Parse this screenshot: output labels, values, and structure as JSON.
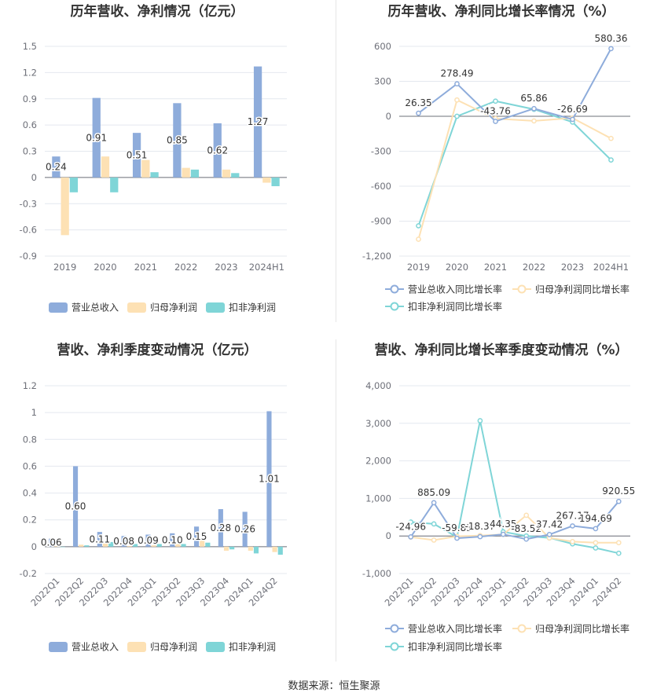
{
  "source_text": "数据来源：恒生聚源",
  "colors": {
    "revenue": "#8eacdb",
    "net_profit": "#fde1b4",
    "deducted_profit": "#7fd5d7",
    "grid": "#e4e8ef",
    "axis": "#6e7079"
  },
  "chart_data": [
    {
      "type": "bar",
      "title": "历年营收、净利情况（亿元）",
      "categories": [
        "2019",
        "2020",
        "2021",
        "2022",
        "2023",
        "2024H1"
      ],
      "series": [
        {
          "name": "营业总收入",
          "values": [
            0.24,
            0.91,
            0.51,
            0.85,
            0.62,
            1.27
          ],
          "labels": [
            "0.24",
            "0.91",
            "0.51",
            "0.85",
            "0.62",
            "1.27"
          ]
        },
        {
          "name": "归母净利润",
          "values": [
            -0.66,
            0.24,
            0.2,
            0.11,
            0.09,
            -0.06
          ]
        },
        {
          "name": "扣非净利润",
          "values": [
            -0.17,
            -0.17,
            0.06,
            0.09,
            0.05,
            -0.1
          ]
        }
      ],
      "yticks": [
        "1.5",
        "1.2",
        "0.9",
        "0.6",
        "0.3",
        "0",
        "-0.3",
        "-0.6",
        "-0.9"
      ],
      "ylim": [
        -0.9,
        1.5
      ],
      "legend_position": "bottom"
    },
    {
      "type": "line",
      "title": "历年营收、净利同比增长率情况（%）",
      "categories": [
        "2019",
        "2020",
        "2021",
        "2022",
        "2023",
        "2024H1"
      ],
      "series": [
        {
          "name": "营业总收入同比增长率",
          "values": [
            26.35,
            278.49,
            -43.76,
            65.86,
            -26.69,
            580.36
          ],
          "labels": [
            "26.35",
            "278.49",
            "-43.76",
            "65.86",
            "-26.69",
            "580.36"
          ]
        },
        {
          "name": "归母净利润同比增长率",
          "values": [
            -1055,
            140,
            -20,
            -40,
            -15,
            -190
          ]
        },
        {
          "name": "扣非净利润同比增长率",
          "values": [
            -940,
            0,
            130,
            60,
            -50,
            -375
          ]
        }
      ],
      "yticks": [
        "600",
        "300",
        "0",
        "-300",
        "-600",
        "-900",
        "-1,200"
      ],
      "ylim": [
        -1200,
        600
      ],
      "legend_position": "bottom"
    },
    {
      "type": "bar",
      "title": "营收、净利季度变动情况（亿元）",
      "categories": [
        "2022Q1",
        "2022Q2",
        "2022Q3",
        "2022Q4",
        "2023Q1",
        "2023Q2",
        "2023Q3",
        "2023Q4",
        "2024Q1",
        "2024Q2"
      ],
      "series": [
        {
          "name": "营业总收入",
          "values": [
            0.06,
            0.6,
            0.11,
            0.08,
            0.09,
            0.1,
            0.15,
            0.28,
            0.26,
            1.01
          ],
          "labels": [
            "0.06",
            "0.60",
            "0.11",
            "0.08",
            "0.09",
            "0.10",
            "0.15",
            "0.28",
            "0.26",
            "1.01"
          ]
        },
        {
          "name": "归母净利润",
          "values": [
            0.005,
            0.015,
            0.03,
            0.005,
            0.01,
            0.02,
            0.05,
            -0.03,
            -0.03,
            -0.04
          ]
        },
        {
          "name": "扣非净利润",
          "values": [
            0.0,
            0.01,
            0.035,
            0.02,
            0.02,
            0.02,
            0.03,
            -0.02,
            -0.05,
            -0.06
          ]
        }
      ],
      "yticks": [
        "1.2",
        "1",
        "0.8",
        "0.6",
        "0.4",
        "0.2",
        "0",
        "-0.2"
      ],
      "ylim": [
        -0.2,
        1.2
      ],
      "legend_position": "bottom"
    },
    {
      "type": "line",
      "title": "营收、净利同比增长率季度变动情况（%）",
      "categories": [
        "2022Q1",
        "2022Q2",
        "2022Q3",
        "2022Q4",
        "2023Q1",
        "2023Q2",
        "2023Q3",
        "2023Q4",
        "2024Q1",
        "2024Q2"
      ],
      "series": [
        {
          "name": "营业总收入同比增长率",
          "values": [
            -24.96,
            885.09,
            -59.83,
            -18.37,
            44.35,
            -83.52,
            37.42,
            267.17,
            194.69,
            920.55
          ],
          "labels": [
            "-24.96",
            "885.09",
            "-59.83",
            "-18.37",
            "44.35",
            "-83.52",
            "37.42",
            "267.17",
            "194.69",
            "920.55"
          ]
        },
        {
          "name": "归母净利润同比增长率",
          "values": [
            -30,
            -110,
            -10,
            10,
            40,
            550,
            -50,
            -150,
            -180,
            -180
          ]
        },
        {
          "name": "扣非净利润同比增长率",
          "values": [
            370,
            320,
            -30,
            3070,
            110,
            0,
            -50,
            -210,
            -320,
            -460
          ]
        }
      ],
      "yticks": [
        "4,000",
        "3,000",
        "2,000",
        "1,000",
        "0",
        "-1,000"
      ],
      "ylim": [
        -1000,
        4000
      ],
      "legend_position": "bottom"
    }
  ]
}
